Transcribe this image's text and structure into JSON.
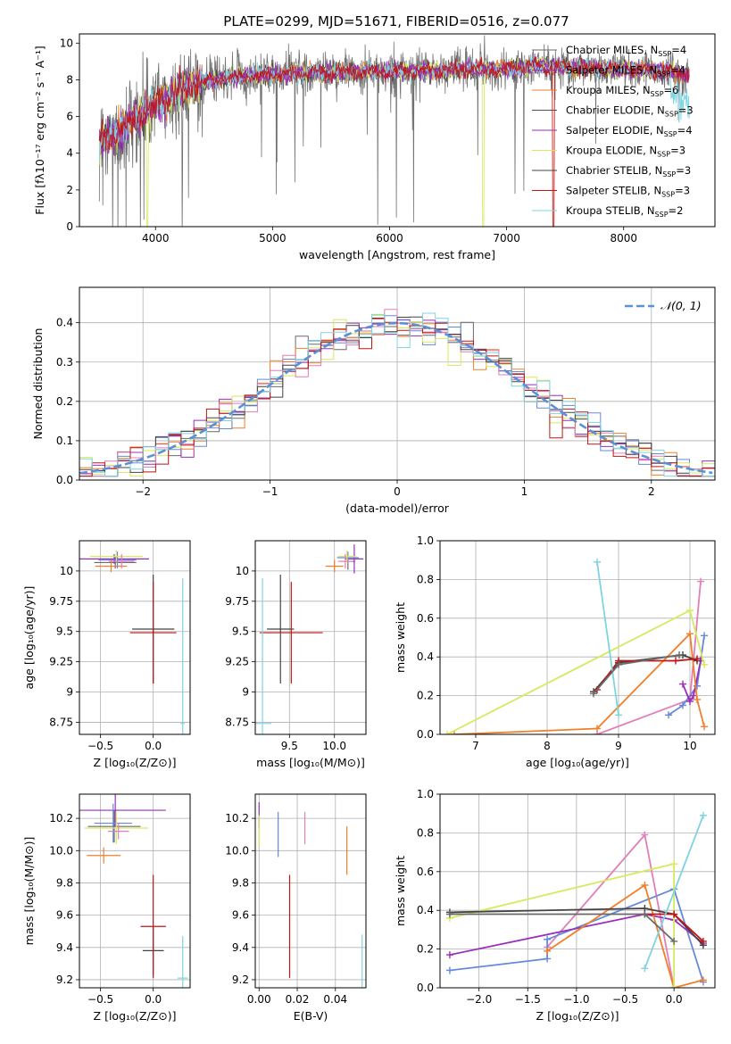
{
  "figure": {
    "title": "PLATE=0299, MJD=51671, FIBERID=0516, z=0.077"
  },
  "palette": [
    "#6a6a6a",
    "#9a2fb8",
    "#f07f2a",
    "#4f4f4f",
    "#9a2fb8",
    "#d7e95e",
    "#444444",
    "#c01515",
    "#7fd4e0"
  ],
  "chart_data": [
    {
      "id": "spectrum",
      "type": "line",
      "xlabel": "wavelength [Angstrom, rest frame]",
      "ylabel": "Flux [fλ10⁻¹⁷ erg cm⁻² s⁻¹ A⁻¹]",
      "xlim": [
        3350,
        8780
      ],
      "ylim": [
        0,
        10.5
      ],
      "xticks": [
        4000,
        5000,
        6000,
        7000,
        8000
      ],
      "yticks": [
        0,
        2,
        4,
        6,
        8,
        10
      ],
      "grid": false,
      "legend_position": "right",
      "legend": [
        {
          "base": "Chabrier MILES, N",
          "sub": "SSP",
          "end": "=4",
          "color": "#6a6a6a"
        },
        {
          "base": "Salpeter MILES, N",
          "sub": "SSP",
          "end": "=4",
          "color": "#9a2fb8"
        },
        {
          "base": "Kroupa MILES, N",
          "sub": "SSP",
          "end": "=6",
          "color": "#f07f2a"
        },
        {
          "base": "Chabrier ELODIE, N",
          "sub": "SSP",
          "end": "=3",
          "color": "#4f4f4f"
        },
        {
          "base": "Salpeter ELODIE, N",
          "sub": "SSP",
          "end": "=4",
          "color": "#9a2fb8"
        },
        {
          "base": "Kroupa ELODIE, N",
          "sub": "SSP",
          "end": "=3",
          "color": "#d7e95e"
        },
        {
          "base": "Chabrier STELIB, N",
          "sub": "SSP",
          "end": "=3",
          "color": "#444444"
        },
        {
          "base": "Salpeter STELIB, N",
          "sub": "SSP",
          "end": "=3",
          "color": "#c01515"
        },
        {
          "base": "Kroupa STELIB, N",
          "sub": "SSP",
          "end": "=2",
          "color": "#7fd4e0"
        }
      ],
      "continuum": {
        "x": [
          3520,
          3600,
          3700,
          3800,
          3900,
          4000,
          4100,
          4200,
          4300,
          4500,
          4700,
          4900,
          5100,
          5300,
          5500,
          5800,
          6100,
          6400,
          6700,
          7000,
          7300,
          7600,
          8000,
          8400,
          8550
        ],
        "y": [
          4.6,
          4.9,
          5.2,
          5.9,
          6.2,
          6.7,
          7.0,
          7.4,
          7.7,
          7.95,
          8.15,
          8.3,
          8.35,
          8.4,
          8.4,
          8.45,
          8.45,
          8.5,
          8.6,
          8.55,
          8.75,
          8.65,
          8.6,
          8.45,
          8.3
        ]
      },
      "flux_drops": [
        {
          "x": 3930,
          "y": 0
        },
        {
          "x": 6800,
          "y": 0
        },
        {
          "x": 7400,
          "y": 0
        }
      ]
    },
    {
      "id": "residuals",
      "type": "histogram",
      "xlabel": "(data-model)/error",
      "ylabel": "Normed distribution",
      "xlim": [
        -2.5,
        2.5
      ],
      "ylim": [
        0,
        0.49
      ],
      "xticks": [
        -2,
        -1,
        0,
        1,
        2
      ],
      "yticks": [
        0.0,
        0.1,
        0.2,
        0.3,
        0.4
      ],
      "grid": true,
      "legend_position": "top-right",
      "reference_label": "𝒩(0, 1)",
      "reference": {
        "mean": 0,
        "sigma": 1
      }
    },
    {
      "id": "age-Z",
      "type": "scatter",
      "xlabel": "Z [log₁₀(Z/Z⊙)]",
      "ylabel": "age  [log₁₀(age/yr)]",
      "xlim": [
        -0.7,
        0.35
      ],
      "ylim": [
        8.65,
        10.25
      ],
      "xticks": [
        -0.5,
        0.0
      ],
      "yticks": [
        8.75,
        9.0,
        9.25,
        9.5,
        9.75,
        10.0
      ],
      "grid": true,
      "points": [
        {
          "x": -0.36,
          "y": 10.07,
          "xerr": 0.2,
          "yerr": 0.05,
          "color": "#6a6a6a"
        },
        {
          "x": -0.37,
          "y": 10.1,
          "xerr": 0.33,
          "yerr": 0.04,
          "color": "#9a2fb8"
        },
        {
          "x": -0.4,
          "y": 10.04,
          "xerr": 0.15,
          "yerr": 0.05,
          "color": "#f07f2a"
        },
        {
          "x": -0.34,
          "y": 10.09,
          "xerr": 0.18,
          "yerr": 0.07,
          "color": "#6688dd"
        },
        {
          "x": -0.35,
          "y": 10.12,
          "xerr": 0.25,
          "yerr": 0.05,
          "color": "#d7e95e"
        },
        {
          "x": -0.3,
          "y": 10.08,
          "xerr": 0.12,
          "yerr": 0.06,
          "color": "#e27fb8"
        },
        {
          "x": 0.0,
          "y": 9.52,
          "xerr": 0.2,
          "yerr": 0.45,
          "color": "#444444"
        },
        {
          "x": 0.0,
          "y": 9.49,
          "xerr": 0.22,
          "yerr": 0.42,
          "color": "#c01515"
        },
        {
          "x": 0.28,
          "y": 8.74,
          "xerr": 0.02,
          "yerr": 1.2,
          "color": "#7fd4e0"
        }
      ]
    },
    {
      "id": "age-mass",
      "type": "scatter",
      "xlabel": "mass [log₁₀(M/M⊙)]",
      "ylabel": "",
      "xlim": [
        9.12,
        10.35
      ],
      "ylim": [
        8.65,
        10.25
      ],
      "xticks": [
        9.5,
        10.0
      ],
      "yticks": [
        8.75,
        9.0,
        9.25,
        9.5,
        9.75,
        10.0
      ],
      "grid": true,
      "points": [
        {
          "x": 10.15,
          "y": 10.08,
          "xerr": 0.08,
          "yerr": 0.07,
          "color": "#6a6a6a"
        },
        {
          "x": 10.22,
          "y": 10.1,
          "xerr": 0.1,
          "yerr": 0.12,
          "color": "#9a2fb8"
        },
        {
          "x": 10.0,
          "y": 10.04,
          "xerr": 0.1,
          "yerr": 0.05,
          "color": "#f07f2a"
        },
        {
          "x": 10.15,
          "y": 10.11,
          "xerr": 0.12,
          "yerr": 0.05,
          "color": "#6688dd"
        },
        {
          "x": 10.14,
          "y": 10.12,
          "xerr": 0.1,
          "yerr": 0.05,
          "color": "#d7e95e"
        },
        {
          "x": 10.12,
          "y": 10.08,
          "xerr": 0.08,
          "yerr": 0.06,
          "color": "#e27fb8"
        },
        {
          "x": 9.4,
          "y": 9.52,
          "xerr": 0.15,
          "yerr": 0.45,
          "color": "#444444"
        },
        {
          "x": 9.52,
          "y": 9.49,
          "xerr": 0.35,
          "yerr": 0.42,
          "color": "#c01515"
        },
        {
          "x": 9.2,
          "y": 8.74,
          "xerr": 0.1,
          "yerr": 1.2,
          "color": "#7fd4e0"
        }
      ]
    },
    {
      "id": "weight-age",
      "type": "line",
      "xlabel": "age  [log₁₀(age/yr)]",
      "ylabel": "mass weight",
      "xlim": [
        6.5,
        10.35
      ],
      "ylim": [
        0.0,
        1.0
      ],
      "xticks": [
        7,
        8,
        9,
        10
      ],
      "yticks": [
        0.0,
        0.2,
        0.4,
        0.6,
        0.8,
        1.0
      ],
      "grid": true,
      "series": [
        {
          "color": "#e27fb8",
          "x": [
            8.7,
            10.0,
            10.15
          ],
          "y": [
            0.0,
            0.18,
            0.79
          ]
        },
        {
          "color": "#6688dd",
          "x": [
            9.7,
            9.9,
            10.1,
            10.2
          ],
          "y": [
            0.1,
            0.15,
            0.25,
            0.51
          ]
        },
        {
          "color": "#9a2fb8",
          "x": [
            9.9,
            10.0,
            10.05,
            10.15
          ],
          "y": [
            0.26,
            0.17,
            0.2,
            0.38
          ]
        },
        {
          "color": "#f07f2a",
          "x": [
            6.7,
            8.7,
            10.0,
            10.1,
            10.2
          ],
          "y": [
            0.0,
            0.03,
            0.52,
            0.18,
            0.04
          ]
        },
        {
          "color": "#d7e95e",
          "x": [
            6.6,
            10.0,
            10.2
          ],
          "y": [
            0.0,
            0.64,
            0.36
          ]
        },
        {
          "color": "#444444",
          "x": [
            8.65,
            9.0,
            9.9,
            10.1
          ],
          "y": [
            0.22,
            0.37,
            0.41,
            0.38
          ]
        },
        {
          "color": "#c01515",
          "x": [
            8.7,
            9.0,
            9.8,
            10.1
          ],
          "y": [
            0.23,
            0.38,
            0.38,
            0.39
          ]
        },
        {
          "color": "#7fd4e0",
          "x": [
            8.7,
            9.0
          ],
          "y": [
            0.89,
            0.1
          ]
        },
        {
          "color": "#6a6a6a",
          "x": [
            8.65,
            9.0,
            9.85
          ],
          "y": [
            0.21,
            0.36,
            0.41
          ]
        }
      ]
    },
    {
      "id": "mass-Z",
      "type": "scatter",
      "xlabel": "Z [log₁₀(Z/Z⊙)]",
      "ylabel": "mass [log₁₀(M/M⊙)]",
      "xlim": [
        -0.7,
        0.35
      ],
      "ylim": [
        9.15,
        10.35
      ],
      "xticks": [
        -0.5,
        0.0
      ],
      "yticks": [
        9.2,
        9.4,
        9.6,
        9.8,
        10.0,
        10.2
      ],
      "grid": true,
      "points": [
        {
          "x": -0.37,
          "y": 10.15,
          "xerr": 0.25,
          "yerr": 0.1,
          "color": "#6a6a6a"
        },
        {
          "x": -0.36,
          "y": 10.25,
          "xerr": 0.48,
          "yerr": 0.1,
          "color": "#9a2fb8"
        },
        {
          "x": -0.47,
          "y": 9.97,
          "xerr": 0.16,
          "yerr": 0.05,
          "color": "#f07f2a"
        },
        {
          "x": -0.38,
          "y": 10.17,
          "xerr": 0.18,
          "yerr": 0.12,
          "color": "#6688dd"
        },
        {
          "x": -0.35,
          "y": 10.14,
          "xerr": 0.3,
          "yerr": 0.1,
          "color": "#d7e95e"
        },
        {
          "x": -0.33,
          "y": 10.12,
          "xerr": 0.1,
          "yerr": 0.05,
          "color": "#e27fb8"
        },
        {
          "x": 0.0,
          "y": 9.38,
          "xerr": 0.1,
          "yerr": 0.15,
          "color": "#444444"
        },
        {
          "x": 0.0,
          "y": 9.53,
          "xerr": 0.12,
          "yerr": 0.32,
          "color": "#c01515"
        },
        {
          "x": 0.28,
          "y": 9.21,
          "xerr": 0.05,
          "yerr": 0.26,
          "color": "#7fd4e0"
        }
      ]
    },
    {
      "id": "mass-ebv",
      "type": "scatter",
      "xlabel": "E(B-V)",
      "ylabel": "",
      "xlim": [
        -0.002,
        0.056
      ],
      "ylim": [
        9.15,
        10.35
      ],
      "xticks": [
        0.0,
        0.02,
        0.04
      ],
      "yticks": [
        9.2,
        9.4,
        9.6,
        9.8,
        10.0,
        10.2
      ],
      "grid": true,
      "points": [
        {
          "x": 0.0,
          "y": 10.22,
          "xerr": 0.0,
          "yerr": 0.08,
          "color": "#9a2fb8"
        },
        {
          "x": 0.0,
          "y": 10.12,
          "xerr": 0.0,
          "yerr": 0.1,
          "color": "#d7e95e"
        },
        {
          "x": 0.01,
          "y": 10.1,
          "xerr": 0.0,
          "yerr": 0.14,
          "color": "#6688dd"
        },
        {
          "x": 0.024,
          "y": 10.14,
          "xerr": 0.0,
          "yerr": 0.1,
          "color": "#e27fb8"
        },
        {
          "x": 0.046,
          "y": 10.0,
          "xerr": 0.0,
          "yerr": 0.15,
          "color": "#f07f2a"
        },
        {
          "x": 0.016,
          "y": 9.53,
          "xerr": 0.0,
          "yerr": 0.32,
          "color": "#c01515"
        },
        {
          "x": 0.054,
          "y": 9.3,
          "xerr": 0.0,
          "yerr": 0.18,
          "color": "#7fd4e0"
        }
      ]
    },
    {
      "id": "weight-Z",
      "type": "line",
      "xlabel": "Z [log₁₀(Z/Z⊙)]",
      "ylabel": "mass weight",
      "xlim": [
        -2.4,
        0.42
      ],
      "ylim": [
        0.0,
        1.0
      ],
      "xticks": [
        -2.0,
        -1.5,
        -1.0,
        -0.5,
        0.0
      ],
      "yticks": [
        0.0,
        0.2,
        0.4,
        0.6,
        0.8,
        1.0
      ],
      "grid": true,
      "series": [
        {
          "color": "#e27fb8",
          "x": [
            -1.3,
            -0.3,
            0.0
          ],
          "y": [
            0.21,
            0.79,
            0.0
          ]
        },
        {
          "color": "#6688dd",
          "x": [
            -2.3,
            -1.3,
            -1.3,
            0.0,
            0.3
          ],
          "y": [
            0.09,
            0.15,
            0.25,
            0.51,
            0.03
          ]
        },
        {
          "color": "#9a2fb8",
          "x": [
            -2.3,
            -0.3,
            0.0,
            0.3
          ],
          "y": [
            0.17,
            0.38,
            0.35,
            0.23
          ]
        },
        {
          "color": "#f07f2a",
          "x": [
            -1.3,
            -0.3,
            0.0,
            0.3
          ],
          "y": [
            0.19,
            0.53,
            0.0,
            0.04
          ]
        },
        {
          "color": "#d7e95e",
          "x": [
            -2.3,
            0.0,
            0.0
          ],
          "y": [
            0.36,
            0.64,
            0.0
          ]
        },
        {
          "color": "#444444",
          "x": [
            -2.3,
            -0.3,
            0.0,
            0.3
          ],
          "y": [
            0.39,
            0.41,
            0.38,
            0.22
          ]
        },
        {
          "color": "#c01515",
          "x": [
            -0.3,
            0.0,
            0.3
          ],
          "y": [
            0.38,
            0.38,
            0.24
          ]
        },
        {
          "color": "#7fd4e0",
          "x": [
            -0.3,
            0.3
          ],
          "y": [
            0.1,
            0.89
          ]
        },
        {
          "color": "#6a6a6a",
          "x": [
            -2.3,
            -0.3,
            0.0
          ],
          "y": [
            0.38,
            0.38,
            0.24
          ]
        }
      ]
    }
  ]
}
